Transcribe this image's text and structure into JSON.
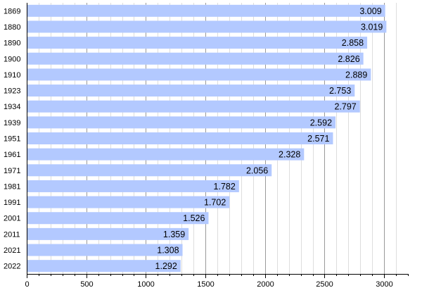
{
  "chart_data": {
    "type": "bar",
    "orientation": "horizontal",
    "categories": [
      "1869",
      "1880",
      "1890",
      "1900",
      "1910",
      "1923",
      "1934",
      "1939",
      "1951",
      "1961",
      "1971",
      "1981",
      "1991",
      "2001",
      "2011",
      "2021",
      "2022"
    ],
    "values": [
      3009,
      3019,
      2858,
      2826,
      2889,
      2753,
      2797,
      2592,
      2571,
      2328,
      2056,
      1782,
      1702,
      1526,
      1359,
      1308,
      1292
    ],
    "value_labels": [
      "3.009",
      "3.019",
      "2.858",
      "2.826",
      "2.889",
      "2.753",
      "2.797",
      "2.592",
      "2.571",
      "2.328",
      "2.056",
      "1.782",
      "1.702",
      "1.526",
      "1.359",
      "1.308",
      "1.292"
    ],
    "xlim": [
      0,
      3200
    ],
    "x_ticks": [
      0,
      500,
      1000,
      1500,
      2000,
      2500,
      3000
    ],
    "x_tick_labels": [
      "0",
      "500",
      "1000",
      "1500",
      "2000",
      "2500",
      "3000"
    ],
    "title": "",
    "xlabel": "",
    "ylabel": "",
    "grid": true,
    "bar_color": "#b3c9ff",
    "major_grid_color": "#999999",
    "minor_grid_color": "#dddddd"
  }
}
